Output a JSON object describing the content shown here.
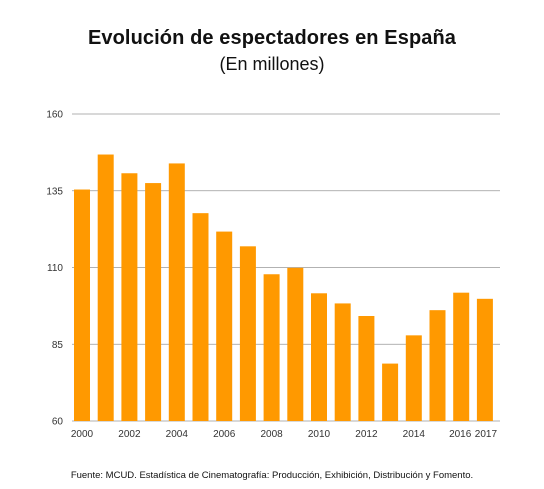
{
  "title": "Evolución de espectadores en España",
  "subtitle": "(En millones)",
  "source": "Fuente: MCUD. Estadística de Cinematografía: Producción, Exhibición, Distribución y Fomento.",
  "colors": {
    "bar": "#FF9900",
    "grid": "#999999"
  },
  "chart_data": {
    "type": "bar",
    "title": "Evolución de espectadores en España",
    "subtitle": "(En millones)",
    "xlabel": "",
    "ylabel": "",
    "categories": [
      "2000",
      "2001",
      "2002",
      "2003",
      "2004",
      "2005",
      "2006",
      "2007",
      "2008",
      "2009",
      "2010",
      "2011",
      "2012",
      "2013",
      "2014",
      "2015",
      "2016",
      "2017"
    ],
    "x_tick_labels": [
      "2000",
      "2002",
      "2004",
      "2006",
      "2008",
      "2010",
      "2012",
      "2014",
      "2016",
      "2017"
    ],
    "values": [
      135.4,
      146.8,
      140.7,
      137.5,
      143.9,
      127.7,
      121.7,
      116.9,
      107.8,
      109.9,
      101.6,
      98.3,
      94.2,
      78.7,
      87.9,
      96.1,
      101.8,
      99.8
    ],
    "ylim": [
      60,
      160
    ],
    "yticks": [
      60,
      85,
      110,
      135,
      160
    ],
    "grid": "horizontal",
    "legend": "none"
  }
}
